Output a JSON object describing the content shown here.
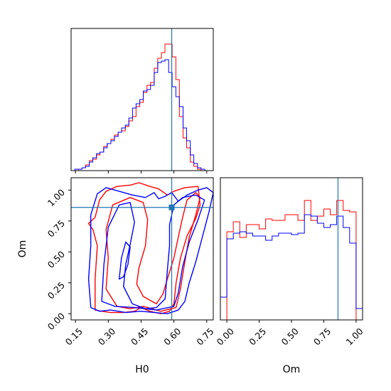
{
  "chart_data": [
    {
      "panel": "H0 marginal",
      "type": "histogram",
      "xlim": [
        0.13,
        0.78
      ],
      "truth": 0.59,
      "bin_edges": [
        0.13,
        0.147,
        0.163,
        0.18,
        0.196,
        0.213,
        0.229,
        0.246,
        0.262,
        0.279,
        0.295,
        0.312,
        0.328,
        0.345,
        0.361,
        0.378,
        0.394,
        0.411,
        0.427,
        0.444,
        0.46,
        0.477,
        0.493,
        0.51,
        0.526,
        0.543,
        0.559,
        0.576,
        0.592,
        0.609,
        0.625,
        0.642,
        0.658,
        0.675,
        0.691,
        0.708,
        0.724,
        0.741,
        0.757,
        0.774,
        0.79
      ],
      "series": [
        {
          "color": "#ff0000",
          "values": [
            0.0,
            0.0,
            0.01,
            0.02,
            0.04,
            0.07,
            0.08,
            0.11,
            0.13,
            0.17,
            0.19,
            0.22,
            0.25,
            0.27,
            0.28,
            0.31,
            0.35,
            0.38,
            0.45,
            0.48,
            0.55,
            0.6,
            0.62,
            0.72,
            0.79,
            0.83,
            0.89,
            0.89,
            0.8,
            0.64,
            0.38,
            0.23,
            0.16,
            0.06,
            0.03,
            0.01,
            0.0,
            0.0,
            0.0,
            0.0
          ]
        },
        {
          "color": "#0000ff",
          "values": [
            0.0,
            0.01,
            0.01,
            0.02,
            0.03,
            0.06,
            0.09,
            0.12,
            0.13,
            0.16,
            0.19,
            0.21,
            0.24,
            0.27,
            0.3,
            0.32,
            0.37,
            0.44,
            0.47,
            0.5,
            0.56,
            0.57,
            0.6,
            0.69,
            0.76,
            0.77,
            0.78,
            0.69,
            0.59,
            0.52,
            0.45,
            0.3,
            0.21,
            0.11,
            0.05,
            0.02,
            0.01,
            0.0,
            0.0,
            0.0
          ]
        }
      ]
    },
    {
      "panel": "Om marginal",
      "type": "histogram",
      "xlim": [
        -0.05,
        1.05
      ],
      "xticks": [
        "0.00",
        "0.25",
        "0.50",
        "0.75",
        "1.00"
      ],
      "xtick_values": [
        0,
        0.25,
        0.5,
        0.75,
        1.0
      ],
      "xlabel": "Om",
      "truth": 0.86,
      "bin_edges": [
        -0.05,
        0.0,
        0.05,
        0.1,
        0.15,
        0.2,
        0.25,
        0.3,
        0.35,
        0.4,
        0.45,
        0.5,
        0.55,
        0.6,
        0.65,
        0.7,
        0.75,
        0.8,
        0.85,
        0.9,
        0.95,
        1.0,
        1.05
      ],
      "series": [
        {
          "color": "#ff0000",
          "values": [
            0.0,
            0.62,
            0.69,
            0.58,
            0.67,
            0.67,
            0.64,
            0.71,
            0.7,
            0.7,
            0.74,
            0.74,
            0.7,
            0.84,
            0.7,
            0.73,
            0.78,
            0.74,
            0.84,
            0.77,
            0.76,
            0.0
          ]
        },
        {
          "color": "#0000ff",
          "values": [
            0.16,
            0.57,
            0.61,
            0.62,
            0.61,
            0.59,
            0.59,
            0.56,
            0.59,
            0.61,
            0.61,
            0.6,
            0.61,
            0.74,
            0.73,
            0.68,
            0.65,
            0.67,
            0.73,
            0.65,
            0.54,
            0.08
          ]
        }
      ]
    },
    {
      "panel": "H0 vs Om 2D",
      "type": "contour",
      "xlim": [
        0.13,
        0.78
      ],
      "ylim": [
        -0.05,
        1.1
      ],
      "xticks": [
        "0.15",
        "0.30",
        "0.45",
        "0.60",
        "0.75"
      ],
      "xtick_values": [
        0.15,
        0.3,
        0.45,
        0.6,
        0.75
      ],
      "yticks": [
        "0.00",
        "0.25",
        "0.50",
        "0.75",
        "1.00"
      ],
      "ytick_values": [
        0,
        0.25,
        0.5,
        0.75,
        1.0
      ],
      "xlabel": "H0",
      "ylabel": "Om",
      "truth": {
        "x": 0.59,
        "y": 0.86
      },
      "series": [
        {
          "color": "#ff0000",
          "contours": [
            [
              [
                0.24,
                0.03
              ],
              [
                0.24,
                0.28
              ],
              [
                0.25,
                0.55
              ],
              [
                0.23,
                0.68
              ],
              [
                0.21,
                0.73
              ],
              [
                0.24,
                0.78
              ],
              [
                0.26,
                0.92
              ],
              [
                0.29,
                0.99
              ],
              [
                0.34,
                1.03
              ],
              [
                0.4,
                1.04
              ],
              [
                0.44,
                1.06
              ],
              [
                0.49,
                1.03
              ],
              [
                0.53,
                1.01
              ],
              [
                0.57,
                0.96
              ],
              [
                0.6,
                0.99
              ],
              [
                0.65,
                1.02
              ],
              [
                0.71,
                1.03
              ],
              [
                0.72,
                0.88
              ],
              [
                0.7,
                0.77
              ],
              [
                0.66,
                0.63
              ],
              [
                0.63,
                0.45
              ],
              [
                0.61,
                0.25
              ],
              [
                0.6,
                0.08
              ],
              [
                0.58,
                0.02
              ],
              [
                0.54,
                0.0
              ],
              [
                0.49,
                0.02
              ],
              [
                0.45,
                0.05
              ],
              [
                0.42,
                0.02
              ],
              [
                0.37,
                0.01
              ],
              [
                0.31,
                0.01
              ],
              [
                0.27,
                0.02
              ],
              [
                0.24,
                0.03
              ]
            ],
            [
              [
                0.29,
                0.2
              ],
              [
                0.3,
                0.45
              ],
              [
                0.29,
                0.68
              ],
              [
                0.32,
                0.88
              ],
              [
                0.4,
                0.94
              ],
              [
                0.46,
                0.9
              ],
              [
                0.48,
                0.76
              ],
              [
                0.47,
                0.55
              ],
              [
                0.44,
                0.37
              ],
              [
                0.43,
                0.24
              ],
              [
                0.46,
                0.14
              ],
              [
                0.52,
                0.08
              ],
              [
                0.55,
                0.16
              ],
              [
                0.57,
                0.28
              ],
              [
                0.6,
                0.45
              ],
              [
                0.62,
                0.62
              ],
              [
                0.64,
                0.78
              ],
              [
                0.66,
                0.92
              ],
              [
                0.7,
                0.98
              ],
              [
                0.72,
                0.94
              ],
              [
                0.7,
                0.8
              ],
              [
                0.67,
                0.62
              ],
              [
                0.65,
                0.42
              ],
              [
                0.63,
                0.2
              ],
              [
                0.61,
                0.05
              ],
              [
                0.54,
                0.02
              ],
              [
                0.46,
                0.06
              ],
              [
                0.4,
                0.04
              ],
              [
                0.34,
                0.06
              ],
              [
                0.29,
                0.2
              ]
            ]
          ]
        },
        {
          "color": "#0000ff",
          "contours": [
            [
              [
                0.22,
                0.05
              ],
              [
                0.21,
                0.28
              ],
              [
                0.22,
                0.55
              ],
              [
                0.22,
                0.8
              ],
              [
                0.25,
                0.97
              ],
              [
                0.29,
                1.02
              ],
              [
                0.35,
                0.99
              ],
              [
                0.41,
                0.96
              ],
              [
                0.47,
                0.94
              ],
              [
                0.51,
                0.98
              ],
              [
                0.53,
                0.93
              ],
              [
                0.56,
                0.95
              ],
              [
                0.59,
                0.98
              ],
              [
                0.62,
                0.91
              ],
              [
                0.66,
                0.96
              ],
              [
                0.71,
                1.0
              ],
              [
                0.75,
                1.02
              ],
              [
                0.78,
                0.98
              ],
              [
                0.76,
                0.82
              ],
              [
                0.73,
                0.62
              ],
              [
                0.7,
                0.42
              ],
              [
                0.67,
                0.25
              ],
              [
                0.65,
                0.1
              ],
              [
                0.62,
                0.03
              ],
              [
                0.57,
                0.0
              ],
              [
                0.51,
                0.01
              ],
              [
                0.45,
                0.02
              ],
              [
                0.38,
                0.01
              ],
              [
                0.31,
                0.03
              ],
              [
                0.26,
                0.02
              ],
              [
                0.22,
                0.05
              ]
            ],
            [
              [
                0.27,
                0.1
              ],
              [
                0.28,
                0.4
              ],
              [
                0.3,
                0.7
              ],
              [
                0.35,
                0.88
              ],
              [
                0.4,
                0.9
              ],
              [
                0.42,
                0.74
              ],
              [
                0.4,
                0.56
              ],
              [
                0.38,
                0.4
              ],
              [
                0.37,
                0.22
              ],
              [
                0.41,
                0.08
              ],
              [
                0.47,
                0.04
              ],
              [
                0.52,
                0.05
              ],
              [
                0.56,
                0.12
              ],
              [
                0.57,
                0.35
              ],
              [
                0.58,
                0.55
              ],
              [
                0.58,
                0.72
              ],
              [
                0.6,
                0.88
              ],
              [
                0.64,
                0.94
              ],
              [
                0.7,
                0.96
              ],
              [
                0.74,
                0.92
              ],
              [
                0.71,
                0.76
              ],
              [
                0.67,
                0.58
              ],
              [
                0.64,
                0.38
              ],
              [
                0.62,
                0.17
              ],
              [
                0.6,
                0.06
              ],
              [
                0.52,
                0.03
              ],
              [
                0.42,
                0.05
              ],
              [
                0.33,
                0.06
              ],
              [
                0.27,
                0.1
              ]
            ],
            [
              [
                0.35,
                0.28
              ],
              [
                0.36,
                0.45
              ],
              [
                0.38,
                0.58
              ],
              [
                0.4,
                0.54
              ],
              [
                0.39,
                0.4
              ],
              [
                0.37,
                0.3
              ],
              [
                0.35,
                0.28
              ]
            ]
          ]
        }
      ]
    }
  ]
}
